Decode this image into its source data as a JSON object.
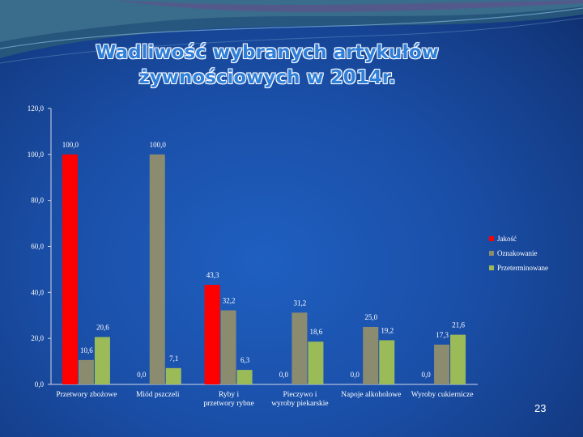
{
  "slide": {
    "title_line1": "Wadliwość wybranych artykułów",
    "title_line2": "żywnościowych w 2014r.",
    "page_number": "23"
  },
  "colors": {
    "Jakość": "#ff0000",
    "Oznakowanie": "#8b8b6f",
    "Przeterminowane": "#9bbb59",
    "axis_text": "#ffffff"
  },
  "chart_data": {
    "type": "bar",
    "categories": [
      "Przetwory zbożowe",
      "Miód pszczeli",
      "Ryby i przetwory rybne",
      "Pieczywo i wyroby piekarskie",
      "Napoje alkoholowe",
      "Wyroby cukiernicze"
    ],
    "series": [
      {
        "name": "Jakość",
        "values": [
          100.0,
          0.0,
          43.3,
          0.0,
          0.0,
          0.0
        ]
      },
      {
        "name": "Oznakowanie",
        "values": [
          10.6,
          100.0,
          32.2,
          31.2,
          25.0,
          17.3
        ]
      },
      {
        "name": "Przeterminowane",
        "values": [
          20.6,
          7.1,
          6.3,
          18.6,
          19.2,
          21.6
        ]
      }
    ],
    "data_labels": [
      [
        "100,0",
        "0,0",
        "43,3",
        "0,0",
        "0,0",
        "0,0"
      ],
      [
        "10,6",
        "100,0",
        "32,2",
        "31,2",
        "25,0",
        "17,3"
      ],
      [
        "20,6",
        "7,1",
        "6,3",
        "18,6",
        "19,2",
        "21,6"
      ]
    ],
    "yticks": [
      "0,0",
      "20,0",
      "40,0",
      "60,0",
      "80,0",
      "100,0",
      "120,0"
    ],
    "ylim": [
      0,
      120
    ],
    "legend_position": "right",
    "grid": false
  }
}
